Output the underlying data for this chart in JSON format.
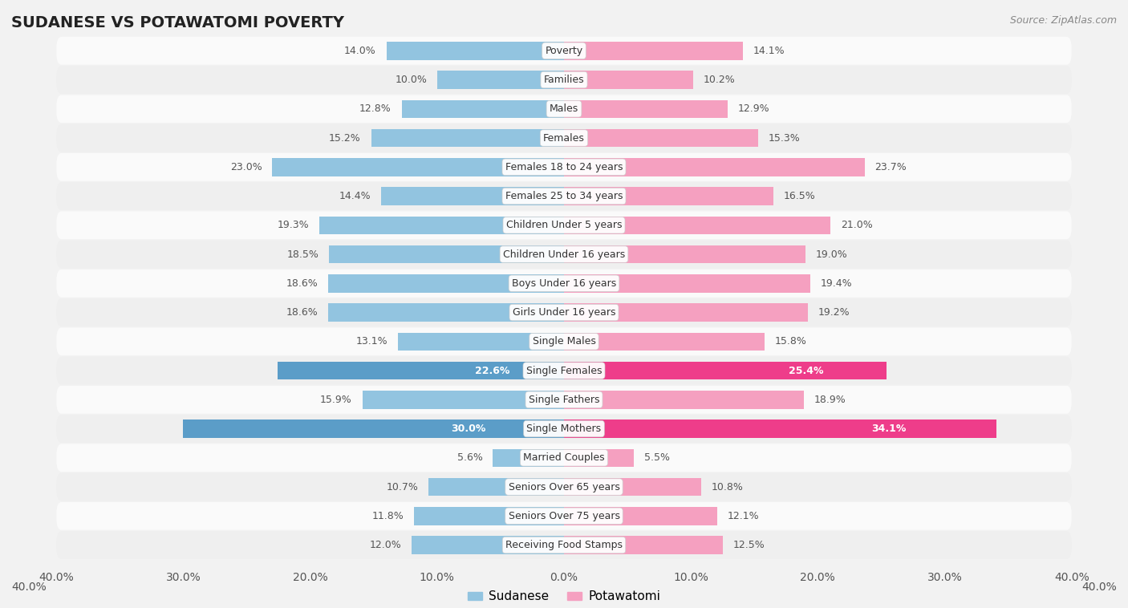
{
  "title": "SUDANESE VS POTAWATOMI POVERTY",
  "source": "Source: ZipAtlas.com",
  "categories": [
    "Poverty",
    "Families",
    "Males",
    "Females",
    "Females 18 to 24 years",
    "Females 25 to 34 years",
    "Children Under 5 years",
    "Children Under 16 years",
    "Boys Under 16 years",
    "Girls Under 16 years",
    "Single Males",
    "Single Females",
    "Single Fathers",
    "Single Mothers",
    "Married Couples",
    "Seniors Over 65 years",
    "Seniors Over 75 years",
    "Receiving Food Stamps"
  ],
  "sudanese": [
    14.0,
    10.0,
    12.8,
    15.2,
    23.0,
    14.4,
    19.3,
    18.5,
    18.6,
    18.6,
    13.1,
    22.6,
    15.9,
    30.0,
    5.6,
    10.7,
    11.8,
    12.0
  ],
  "potawatomi": [
    14.1,
    10.2,
    12.9,
    15.3,
    23.7,
    16.5,
    21.0,
    19.0,
    19.4,
    19.2,
    15.8,
    25.4,
    18.9,
    34.1,
    5.5,
    10.8,
    12.1,
    12.5
  ],
  "sudanese_color": "#92C4E0",
  "potawatomi_color": "#F5A0C0",
  "highlight_rows": [
    11,
    13
  ],
  "highlight_sudanese_color": "#5B9DC8",
  "highlight_potawatomi_color": "#EE3D8A",
  "bar_height": 0.62,
  "background_color": "#f2f2f2",
  "row_bg_even": "#fafafa",
  "row_bg_odd": "#efefef",
  "xlim": 40.0,
  "legend_items": [
    "Sudanese",
    "Potawatomi"
  ],
  "title_fontsize": 14,
  "source_fontsize": 9,
  "label_fontsize": 9,
  "category_fontsize": 9,
  "axis_label_fontsize": 10
}
